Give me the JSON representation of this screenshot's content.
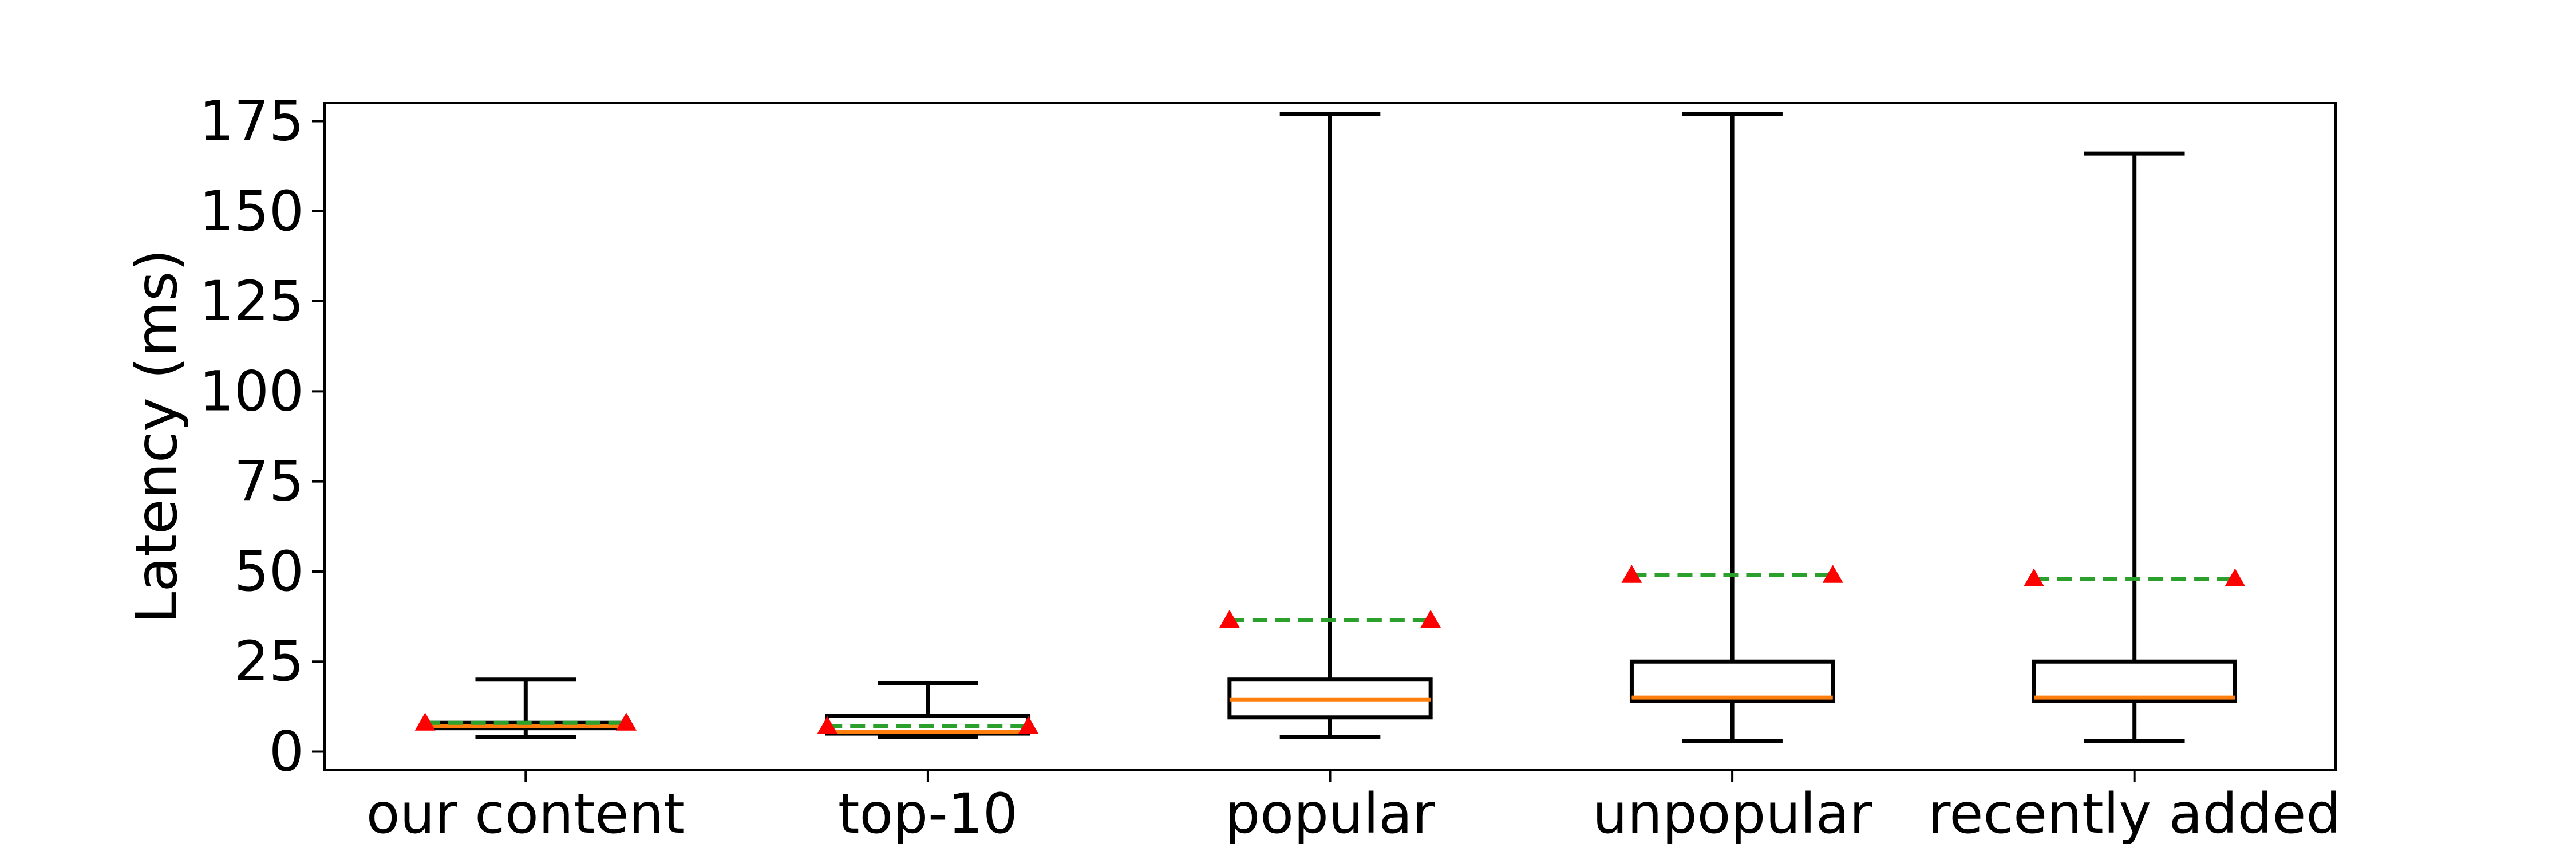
{
  "chart_data": {
    "type": "box",
    "ylabel": "Latency (ms)",
    "xlabel": "",
    "title": "",
    "ylim": [
      -5,
      180
    ],
    "yticks": [
      0,
      25,
      50,
      75,
      100,
      125,
      150,
      175
    ],
    "grid": false,
    "categories": [
      "our content",
      "top-10",
      "popular",
      "unpopular",
      "recently added"
    ],
    "boxes": [
      {
        "category": "our content",
        "whisker_low": 4,
        "q1": 6.5,
        "median": 7,
        "q3": 8,
        "whisker_high": 20,
        "mean": 8
      },
      {
        "category": "top-10",
        "whisker_low": 4,
        "q1": 5,
        "median": 5.5,
        "q3": 10,
        "whisker_high": 19,
        "mean": 7
      },
      {
        "category": "popular",
        "whisker_low": 4,
        "q1": 9.5,
        "median": 14.5,
        "q3": 20,
        "whisker_high": 177,
        "mean": 36.5
      },
      {
        "category": "unpopular",
        "whisker_low": 3,
        "q1": 14,
        "median": 15,
        "q3": 25,
        "whisker_high": 177,
        "mean": 49
      },
      {
        "category": "recently added",
        "whisker_low": 3,
        "q1": 14,
        "median": 15,
        "q3": 25,
        "whisker_high": 166,
        "mean": 48
      }
    ],
    "colors": {
      "box": "#000000",
      "median": "#ff7f0e",
      "mean_line": "#2ca02c",
      "mean_marker": "#ff0000",
      "axes": "#000000"
    }
  }
}
